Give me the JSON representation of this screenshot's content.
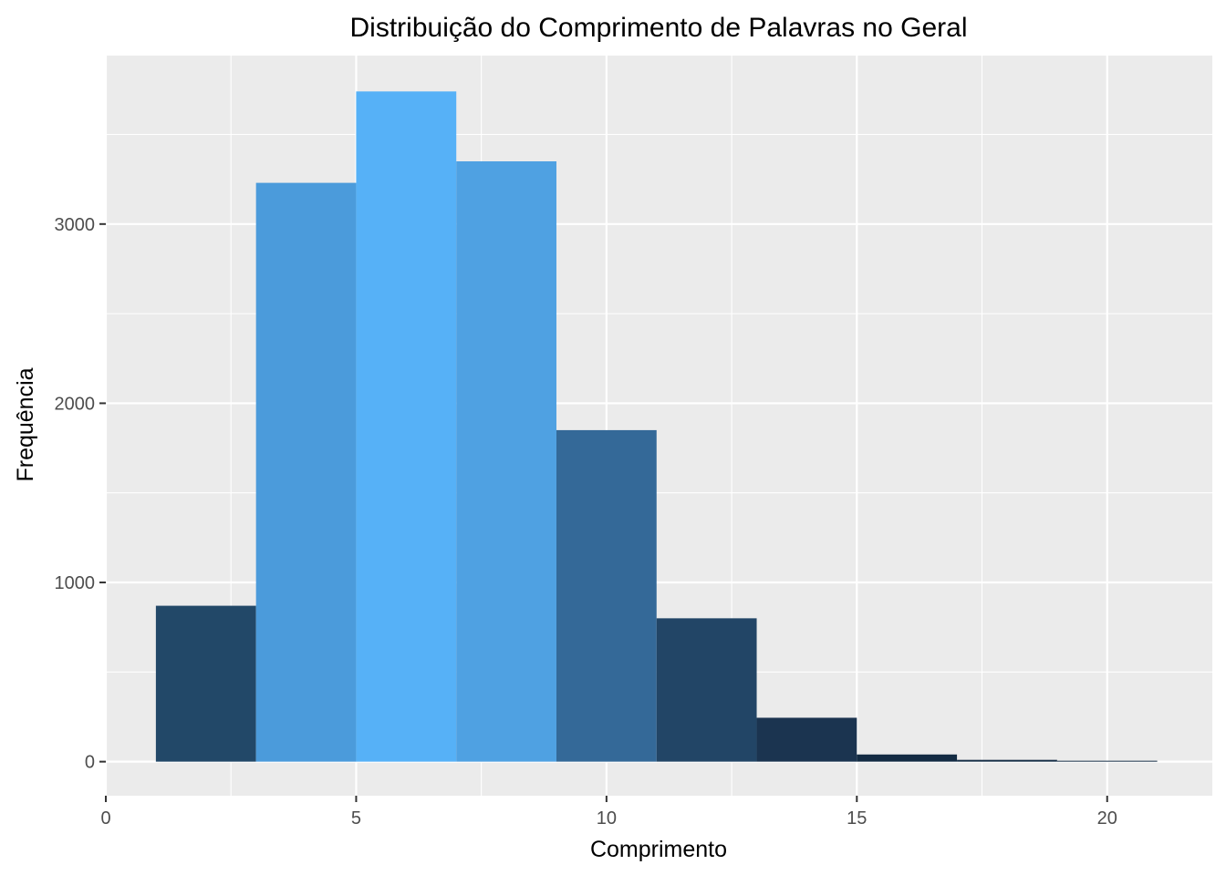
{
  "chart_data": {
    "type": "bar",
    "title": "Distribuição do Comprimento de Palavras no Geral",
    "xlabel": "Comprimento",
    "ylabel": "Frequência",
    "xlim": [
      0,
      22.1
    ],
    "ylim": [
      -190,
      3940
    ],
    "x_ticks": [
      0,
      5,
      10,
      15,
      20
    ],
    "y_ticks": [
      0,
      1000,
      2000,
      3000
    ],
    "grid": true,
    "bins": [
      {
        "x0": 1,
        "x1": 3,
        "value": 870,
        "color": "#224868"
      },
      {
        "x0": 3,
        "x1": 5,
        "value": 3230,
        "color": "#4b9bdb"
      },
      {
        "x0": 5,
        "x1": 7,
        "value": 3740,
        "color": "#56b1f7"
      },
      {
        "x0": 7,
        "x1": 9,
        "value": 3350,
        "color": "#4fa1e2"
      },
      {
        "x0": 9,
        "x1": 11,
        "value": 1850,
        "color": "#346998"
      },
      {
        "x0": 11,
        "x1": 13,
        "value": 800,
        "color": "#224566"
      },
      {
        "x0": 13,
        "x1": 15,
        "value": 245,
        "color": "#1b3450"
      },
      {
        "x0": 15,
        "x1": 17,
        "value": 40,
        "color": "#132b43"
      },
      {
        "x0": 17,
        "x1": 19,
        "value": 10,
        "color": "#132b43"
      },
      {
        "x0": 19,
        "x1": 21,
        "value": 5,
        "color": "#132b43"
      }
    ],
    "colors": {
      "panel_background": "#ebebeb",
      "grid_major": "#ffffff",
      "tick_mark": "#333333"
    }
  }
}
